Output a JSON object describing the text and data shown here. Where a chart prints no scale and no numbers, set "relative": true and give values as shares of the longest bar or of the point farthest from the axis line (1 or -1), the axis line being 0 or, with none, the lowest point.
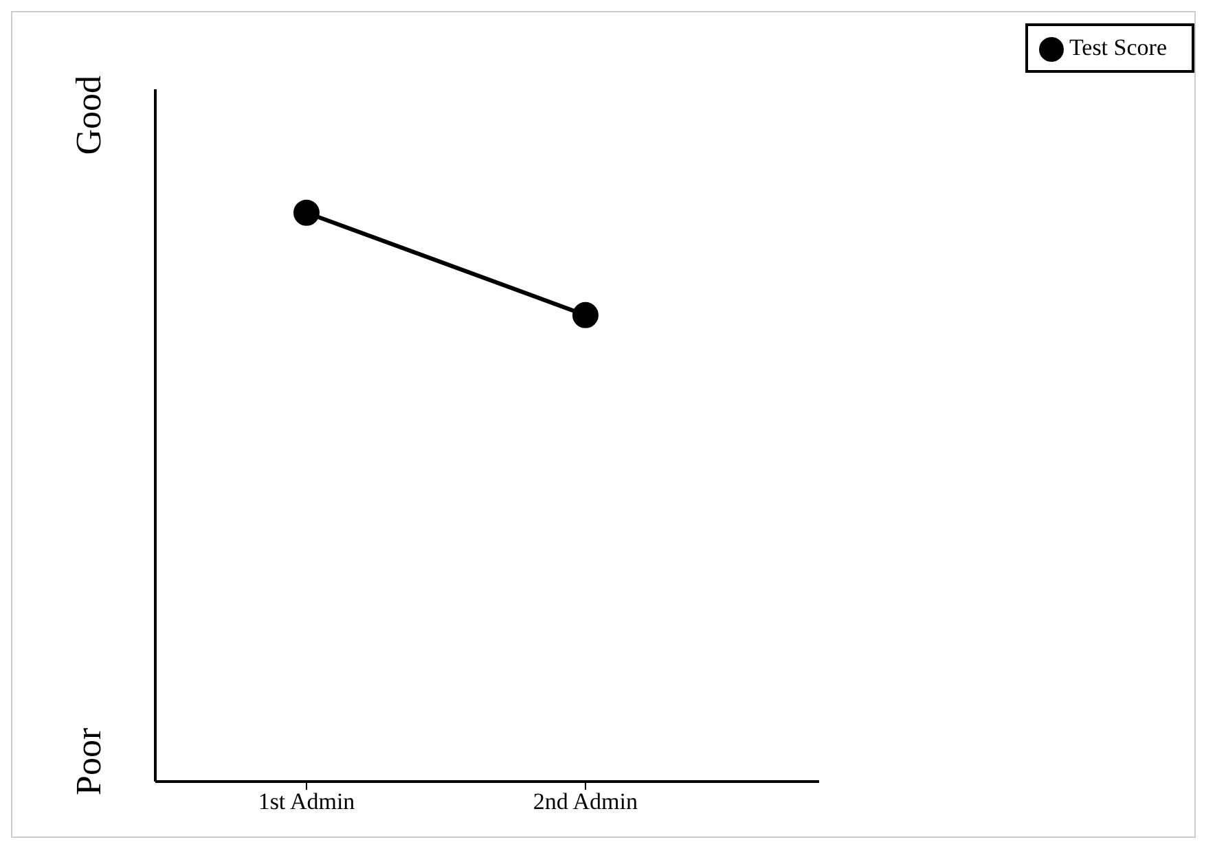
{
  "chart_data": {
    "type": "line",
    "categories": [
      "1st Admin",
      "2nd Admin"
    ],
    "relative": true,
    "series": [
      {
        "name": "Test Score",
        "color": "#000000",
        "values": [
          1,
          0.82
        ]
      }
    ],
    "annotations": [
      "Poor",
      "Good"
    ],
    "marker": "circle",
    "legend": "top right",
    "grid": false
  }
}
